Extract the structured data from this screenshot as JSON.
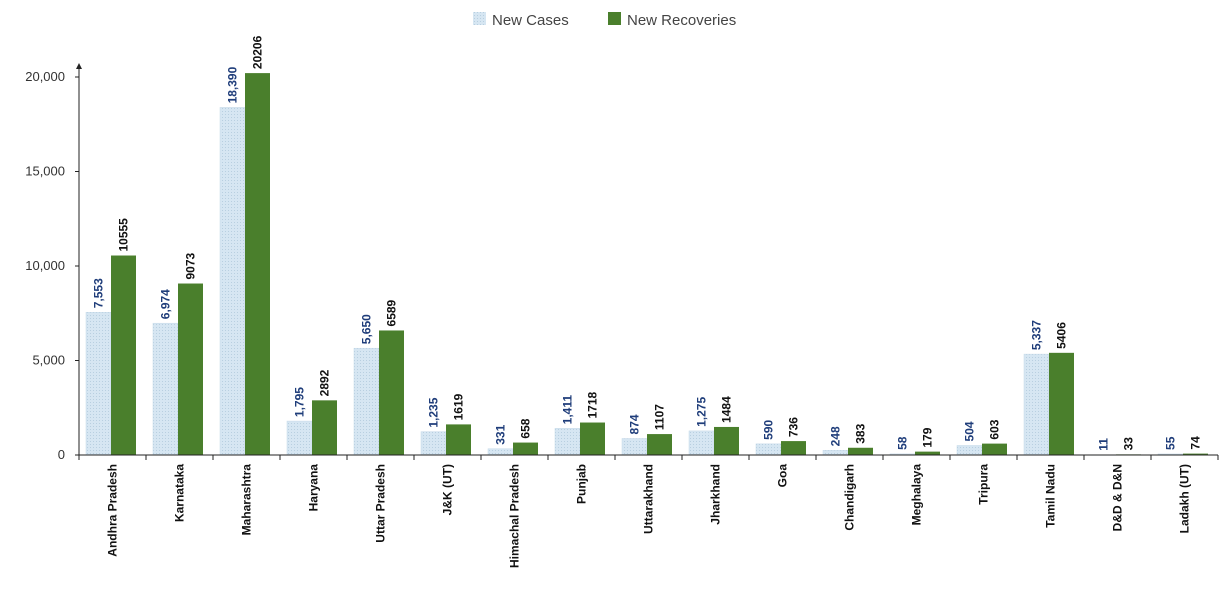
{
  "chart_data": {
    "type": "bar",
    "categories": [
      "Andhra Pradesh",
      "Karnataka",
      "Maharashtra",
      "Haryana",
      "Uttar Pradesh",
      "J&K (UT)",
      "Himachal Pradesh",
      "Punjab",
      "Uttarakhand",
      "Jharkhand",
      "Goa",
      "Chandigarh",
      "Meghalaya",
      "Tripura",
      "Tamil Nadu",
      "D&D & D&N",
      "Ladakh (UT)"
    ],
    "series": [
      {
        "name": "New Cases",
        "color": "#d6e6f2",
        "label_color": "#1f3d7a",
        "values": [
          7553,
          6974,
          18390,
          1795,
          5650,
          1235,
          331,
          1411,
          874,
          1275,
          590,
          248,
          58,
          504,
          5337,
          11,
          55
        ],
        "labels": [
          "7,553",
          "6,974",
          "18,390",
          "1,795",
          "5,650",
          "1,235",
          "331",
          "1,411",
          "874",
          "1,275",
          "590",
          "248",
          "58",
          "504",
          "5,337",
          "11",
          "55"
        ]
      },
      {
        "name": "New Recoveries",
        "color": "#4a7f2c",
        "label_color": "#111111",
        "values": [
          10555,
          9073,
          20206,
          2892,
          6589,
          1619,
          658,
          1718,
          1107,
          1484,
          736,
          383,
          179,
          603,
          5406,
          33,
          74
        ],
        "labels": [
          "10555",
          "9073",
          "20206",
          "2892",
          "6589",
          "1619",
          "658",
          "1718",
          "1107",
          "1484",
          "736",
          "383",
          "179",
          "603",
          "5406",
          "33",
          "74"
        ]
      }
    ],
    "yticks": [
      0,
      5000,
      10000,
      15000,
      20000
    ],
    "ytick_labels": [
      "0",
      "5,000",
      "10,000",
      "15,000",
      "20,000"
    ],
    "ylim": [
      0,
      20000
    ],
    "legend_position": "top-center",
    "grid": false
  }
}
